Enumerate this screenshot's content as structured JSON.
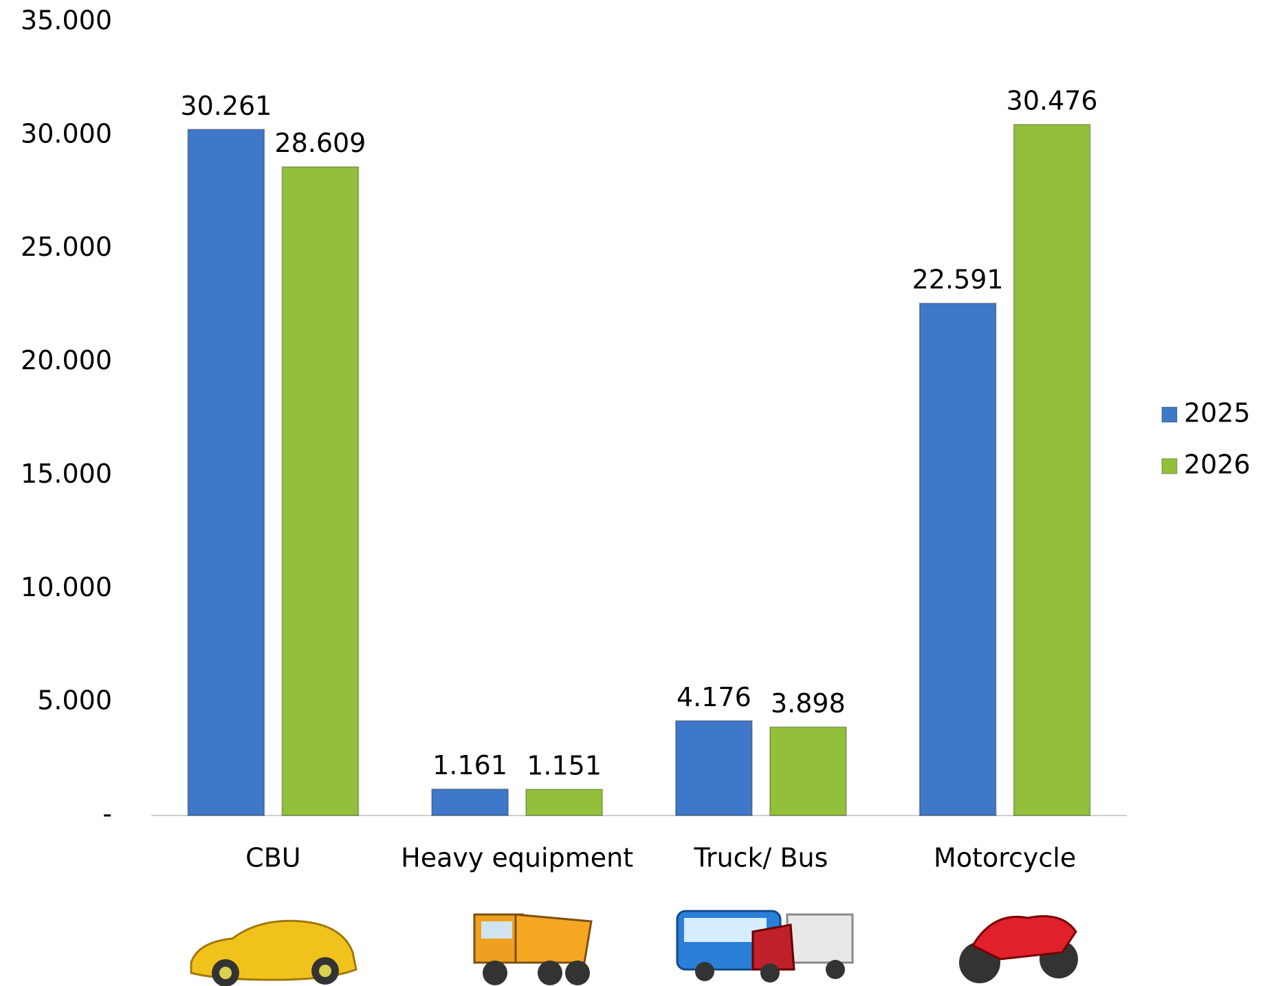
{
  "chart_data": {
    "type": "bar",
    "categories": [
      "CBU",
      "Heavy equipment",
      "Truck/ Bus",
      "Motorcycle"
    ],
    "series": [
      {
        "name": "2025",
        "color": "#3f78c9",
        "values": [
          30261,
          1161,
          4176,
          22591
        ],
        "value_labels": [
          "30.261",
          "1.161",
          "4.176",
          "22.591"
        ]
      },
      {
        "name": "2026",
        "color": "#92c03a",
        "values": [
          28609,
          1151,
          3898,
          30476
        ],
        "value_labels": [
          "28.609",
          "1.151",
          "3.898",
          "30.476"
        ]
      }
    ],
    "ylim": [
      0,
      35000
    ],
    "yticks": [
      {
        "value": 0,
        "label": "-"
      },
      {
        "value": 5000,
        "label": "5.000"
      },
      {
        "value": 10000,
        "label": "10.000"
      },
      {
        "value": 15000,
        "label": "15.000"
      },
      {
        "value": 20000,
        "label": "20.000"
      },
      {
        "value": 25000,
        "label": "25.000"
      },
      {
        "value": 30000,
        "label": "30.000"
      },
      {
        "value": 35000,
        "label": "35.000"
      }
    ],
    "legend": "right"
  }
}
